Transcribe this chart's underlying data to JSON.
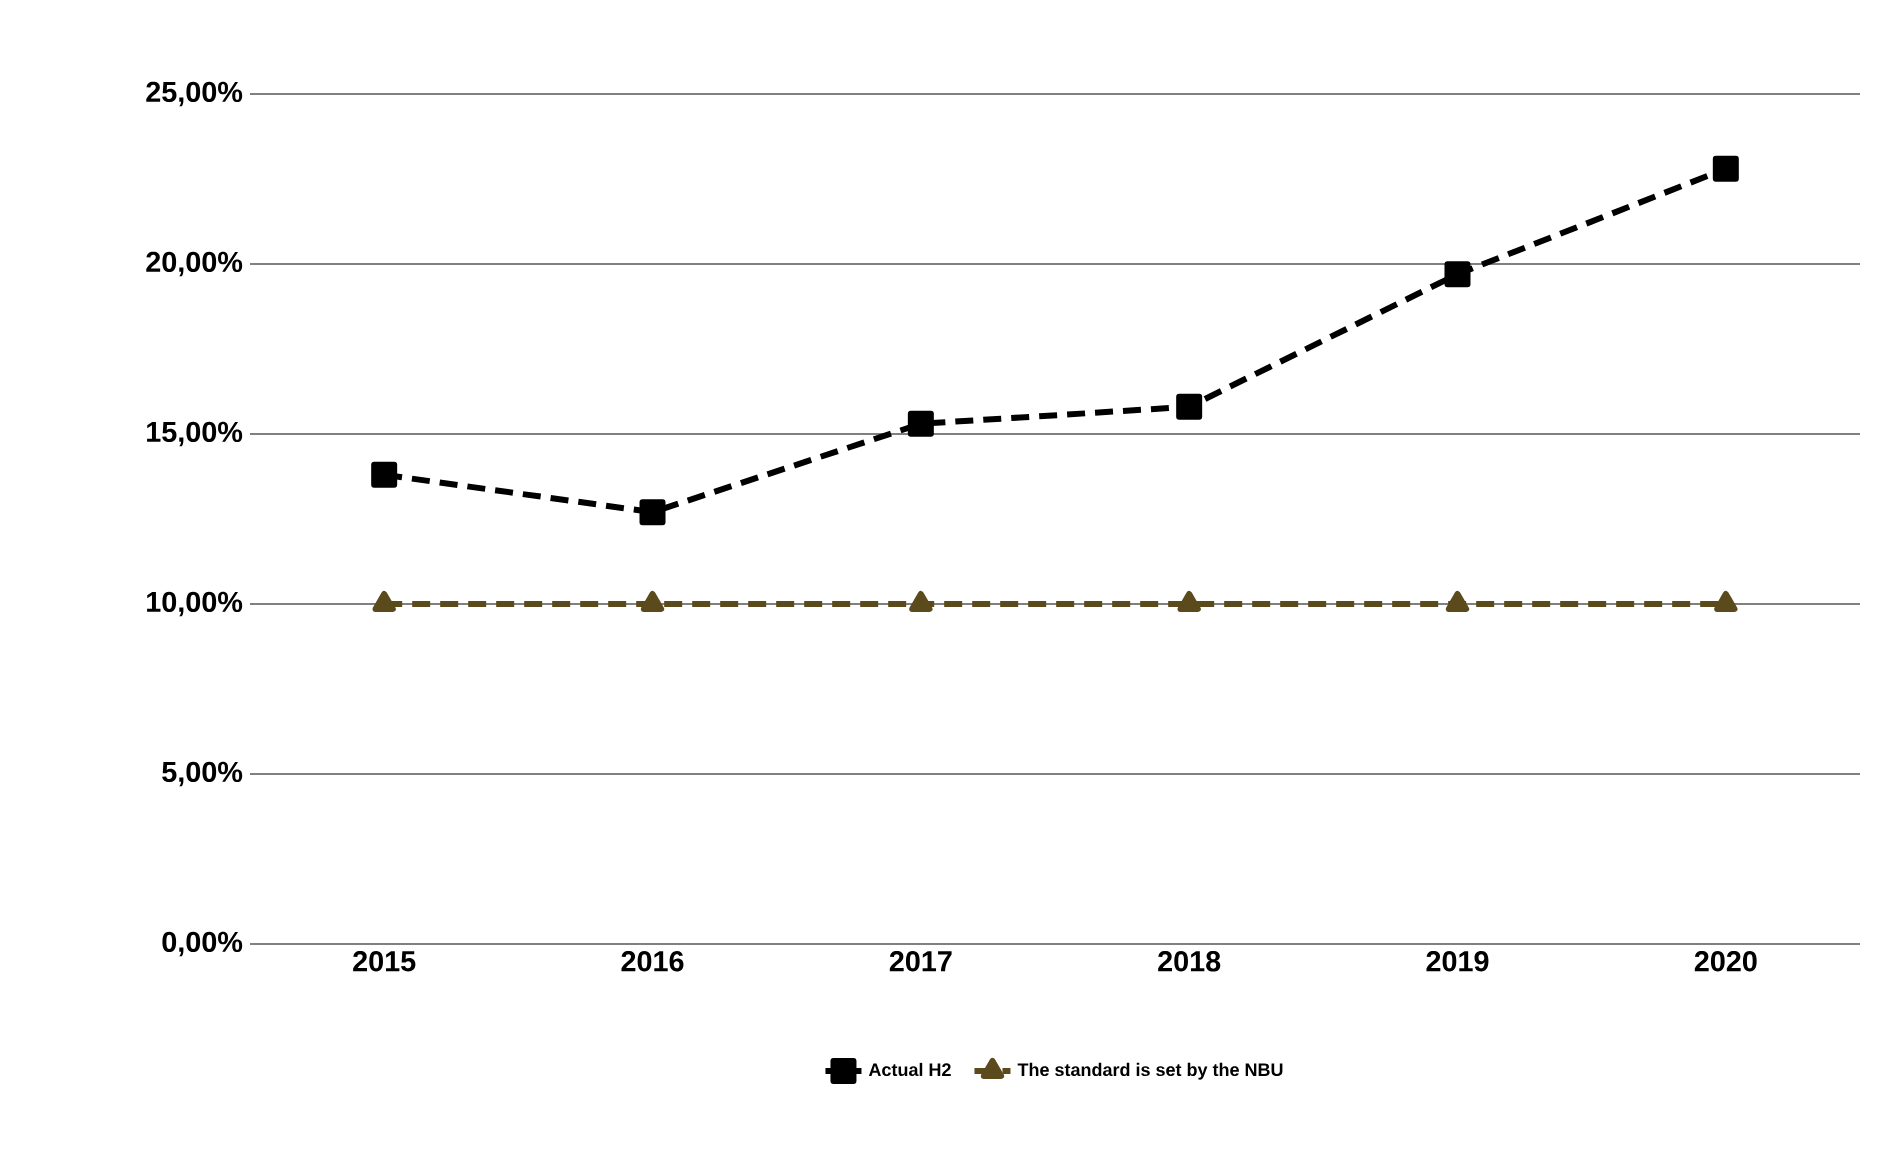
{
  "chart_data": {
    "type": "line",
    "categories": [
      "2015",
      "2016",
      "2017",
      "2018",
      "2019",
      "2020"
    ],
    "series": [
      {
        "name": "Actual H2",
        "color": "#000000",
        "values": [
          13.8,
          12.7,
          15.3,
          15.8,
          19.7,
          22.8
        ],
        "marker": "square",
        "line_style": "dashed"
      },
      {
        "name": "The standard is set by the NBU",
        "color": "#5a4a1c",
        "values": [
          10,
          10,
          10,
          10,
          10,
          10
        ],
        "marker": "triangle",
        "line_style": "dashed"
      }
    ],
    "ylim": [
      0,
      25
    ],
    "yticks": [
      {
        "value": 0,
        "label": "0,00%"
      },
      {
        "value": 5,
        "label": "5,00%"
      },
      {
        "value": 10,
        "label": "10,00%"
      },
      {
        "value": 15,
        "label": "15,00%"
      },
      {
        "value": 20,
        "label": "20,00%"
      },
      {
        "value": 25,
        "label": "25,00%"
      }
    ],
    "grid": "y",
    "legend": "bottom"
  }
}
